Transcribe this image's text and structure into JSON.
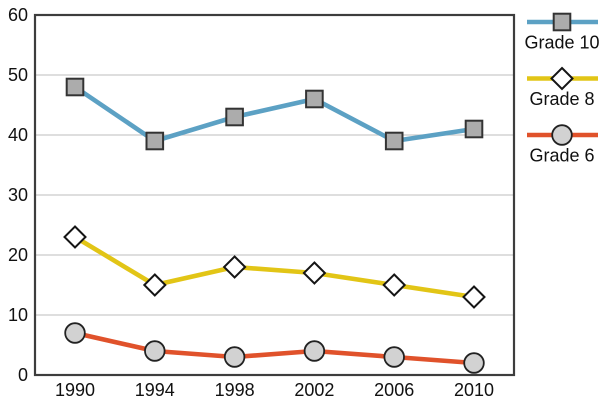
{
  "chart_data": {
    "type": "line",
    "x": [
      "1990",
      "1994",
      "1998",
      "2002",
      "2006",
      "2010"
    ],
    "xticklabels": [
      "1990",
      "1994",
      "1998",
      "2002",
      "2006",
      "2010"
    ],
    "series": [
      {
        "name": "Grade 10",
        "values": [
          48,
          39,
          43,
          46,
          39,
          41
        ],
        "color": "#5CA1C4",
        "marker": "square",
        "marker_fill": "#ACACAC",
        "marker_stroke": "#333333"
      },
      {
        "name": "Grade 8",
        "values": [
          23,
          15,
          18,
          17,
          15,
          13
        ],
        "color": "#E2C516",
        "marker": "diamond",
        "marker_fill": "#FFFFFF",
        "marker_stroke": "#151515"
      },
      {
        "name": "Grade 6",
        "values": [
          7,
          4,
          3,
          4,
          3,
          2
        ],
        "color": "#E0522B",
        "marker": "circle",
        "marker_fill": "#D2D2D2",
        "marker_stroke": "#222222"
      }
    ],
    "title": "",
    "xlabel": "",
    "ylabel": "",
    "ylim": [
      0,
      60
    ],
    "yticks": [
      0,
      10,
      20,
      30,
      40,
      50,
      60
    ],
    "grid": true,
    "legend_position": "right",
    "legend_labels": [
      "Grade 10",
      "Grade 8",
      "Grade 6"
    ]
  },
  "colors": {
    "background": "#FFFFFF",
    "plot_border": "#3D3D3D",
    "gridline": "#C9C9C9",
    "tick_text": "#111111",
    "legend_text": "#111111"
  }
}
